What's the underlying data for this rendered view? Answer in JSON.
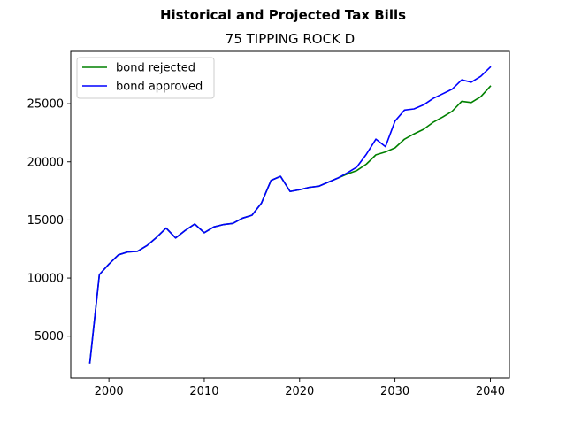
{
  "chart_data": {
    "type": "line",
    "suptitle": "Historical and Projected Tax Bills",
    "title": "75 TIPPING ROCK D",
    "xlabel": "",
    "ylabel": "",
    "xlim": [
      1996,
      2042
    ],
    "ylim": [
      1400,
      29500
    ],
    "xticks": [
      2000,
      2010,
      2020,
      2030,
      2040
    ],
    "yticks": [
      5000,
      10000,
      15000,
      20000,
      25000
    ],
    "grid": false,
    "legend_position": "upper-left",
    "x": [
      1998,
      1999,
      2000,
      2001,
      2002,
      2003,
      2004,
      2005,
      2006,
      2007,
      2008,
      2009,
      2010,
      2011,
      2012,
      2013,
      2014,
      2015,
      2016,
      2017,
      2018,
      2019,
      2020,
      2021,
      2022,
      2023,
      2024,
      2025,
      2026,
      2027,
      2028,
      2029,
      2030,
      2031,
      2032,
      2033,
      2034,
      2035,
      2036,
      2037,
      2038,
      2039,
      2040
    ],
    "series": [
      {
        "name": "bond rejected",
        "color": "#008000",
        "values": [
          2700,
          10300,
          11200,
          12000,
          12250,
          12300,
          12800,
          13500,
          14300,
          13450,
          14100,
          14650,
          13900,
          14400,
          14600,
          14700,
          15150,
          15400,
          16450,
          18400,
          18750,
          17450,
          17600,
          17800,
          17900,
          18250,
          18600,
          18950,
          19250,
          19800,
          20600,
          20850,
          21200,
          21950,
          22400,
          22800,
          23400,
          23850,
          24350,
          25200,
          25100,
          25600,
          26500
        ]
      },
      {
        "name": "bond approved",
        "color": "#0000ff",
        "values": [
          2700,
          10300,
          11200,
          12000,
          12250,
          12300,
          12800,
          13500,
          14300,
          13450,
          14100,
          14650,
          13900,
          14400,
          14600,
          14700,
          15150,
          15400,
          16450,
          18400,
          18750,
          17450,
          17600,
          17800,
          17900,
          18250,
          18600,
          19050,
          19550,
          20650,
          21950,
          21300,
          23500,
          24450,
          24550,
          24900,
          25450,
          25850,
          26250,
          27050,
          26850,
          27350,
          28150
        ]
      }
    ]
  }
}
